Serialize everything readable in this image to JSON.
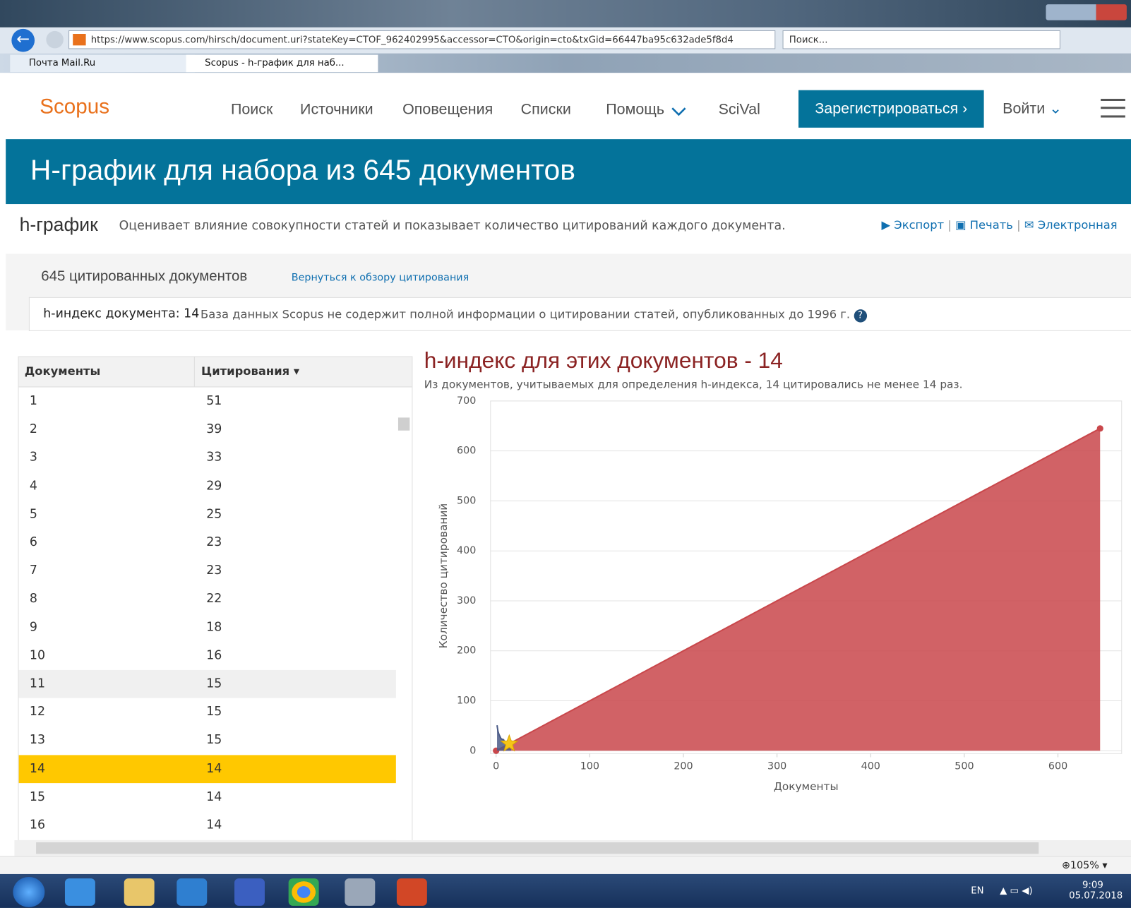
{
  "browser": {
    "url": "https://www.scopus.com/hirsch/document.uri?stateKey=CTOF_962402995&accessor=CTO&origin=cto&txGid=66447ba95c632ade5f8d4",
    "search": "Поиск...",
    "tabs": [
      "Почта Mail.Ru",
      "Scopus - h-график для наб..."
    ],
    "zoom": "105%"
  },
  "nav": {
    "logo": "Scopus",
    "items": [
      "Поиск",
      "Источники",
      "Оповещения",
      "Списки",
      "Помощь",
      "SciVal"
    ],
    "register": "Зарегистрироваться",
    "login": "Войти"
  },
  "banner": {
    "title": "H-график для набора из 645 документов"
  },
  "subheader": {
    "label": "h-график",
    "description": "Оценивает влияние совокупности статей и показывает количество цитирований каждого документа.",
    "actions": [
      "Экспорт",
      "Печать",
      "Электронная"
    ]
  },
  "summary": {
    "count": "645 цитированных документов",
    "link": "Вернуться к обзору цитирования",
    "h_index_label": "h-индекс документа: 14",
    "note": "База данных Scopus не содержит полной информации о цитировании статей, опубликованных до 1996 г."
  },
  "table": {
    "headers": [
      "Документы",
      "Цитирования"
    ],
    "rows": [
      [
        1,
        51
      ],
      [
        2,
        39
      ],
      [
        3,
        33
      ],
      [
        4,
        29
      ],
      [
        5,
        25
      ],
      [
        6,
        23
      ],
      [
        7,
        23
      ],
      [
        8,
        22
      ],
      [
        9,
        18
      ],
      [
        10,
        16
      ],
      [
        11,
        15
      ],
      [
        12,
        15
      ],
      [
        13,
        15
      ],
      [
        14,
        14
      ],
      [
        15,
        14
      ],
      [
        16,
        14
      ]
    ],
    "highlighted_document": 14,
    "hovered_document": 11
  },
  "chart_data": {
    "type": "area",
    "title": "h-индекс для этих документов - 14",
    "subtitle": "Из документов, учитываемых для определения h-индекса, 14 цитировались не менее 14 раз.",
    "x_label": "Документы",
    "y_label": "Количество цитирований",
    "xlim": [
      -6,
      668
    ],
    "ylim": [
      0,
      700
    ],
    "xticks": [
      0,
      100,
      200,
      300,
      400,
      500,
      600
    ],
    "yticks": [
      0,
      100,
      200,
      300,
      400,
      500,
      600,
      700
    ],
    "grid": true,
    "series": [
      {
        "color": "#c9474b",
        "x": [
          0,
          645
        ],
        "values": [
          0,
          645
        ]
      }
    ],
    "citations_color": "#4b5b87",
    "h_index": 14,
    "star_color": "#f5c518"
  },
  "taskbar": {
    "language": "EN",
    "time": "9:09",
    "date": "05.07.2018"
  }
}
